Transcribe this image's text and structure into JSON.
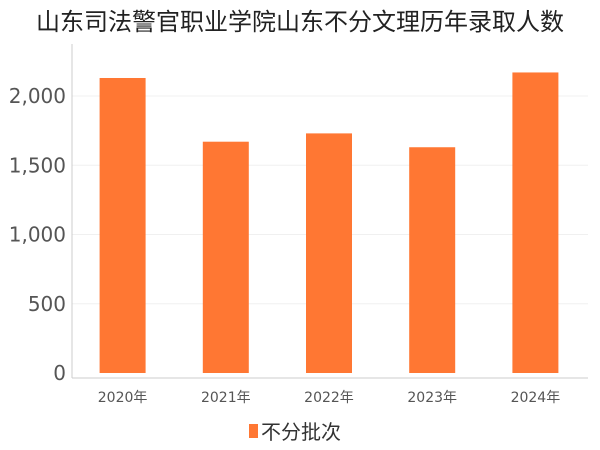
{
  "chart_data": {
    "type": "bar",
    "title": "山东司法警官职业学院山东不分文理历年录取人数",
    "categories": [
      "2020年",
      "2021年",
      "2022年",
      "2023年",
      "2024年"
    ],
    "series": [
      {
        "name": "不分批次",
        "values": [
          2130,
          1670,
          1730,
          1630,
          2170
        ],
        "color": "#ff7733"
      }
    ],
    "ylim": [
      0,
      2200
    ],
    "yticks": [
      0,
      500,
      1000,
      1500,
      2000
    ],
    "ytick_labels": [
      "0",
      "500",
      "1,000",
      "1,500",
      "2,000"
    ],
    "grid": true,
    "legend_position": "bottom-center",
    "xlabel": "",
    "ylabel": ""
  }
}
